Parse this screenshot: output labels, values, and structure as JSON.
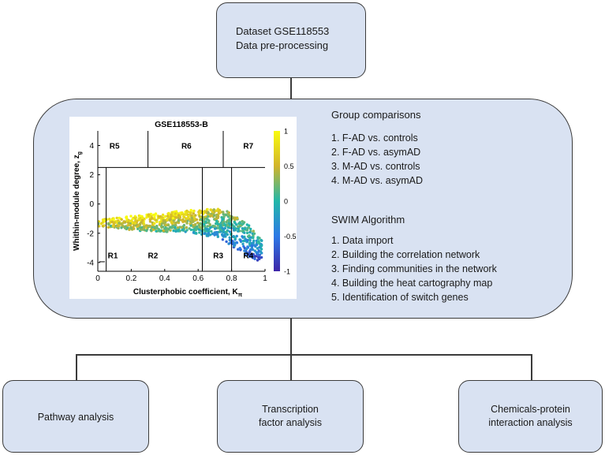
{
  "top_box": {
    "line1": "Dataset GSE118553",
    "line2": "Data pre-processing"
  },
  "group_comparisons": {
    "title": "Group comparisons",
    "items": [
      "1. F-AD vs. controls",
      "2. F-AD vs. asymAD",
      "3. M-AD vs. controls",
      "4. M-AD vs. asymAD"
    ]
  },
  "swim": {
    "title": "SWIM Algorithm",
    "items": [
      "1. Data import",
      "2. Building the correlation network",
      "3. Finding communities in the network",
      "4. Building the heat cartography map",
      "5. Identification of switch genes"
    ]
  },
  "bottom": {
    "pathway": "Pathway analysis",
    "tf_line1": "Transcription",
    "tf_line2": "factor analysis",
    "chem_line1": "Chemicals-protein",
    "chem_line2": "interaction analysis"
  },
  "plot": {
    "title": "GSE118553-B",
    "xlabel": "Clusterphobic coefficient, K",
    "xlabel_sub": "π",
    "ylabel": "Whithin-module degree, z",
    "ylabel_sub": "g",
    "xticks": [
      "0",
      "0.2",
      "0.4",
      "0.6",
      "0.8",
      "1"
    ],
    "yticks": [
      "4",
      "2",
      "0",
      "-2",
      "-4"
    ],
    "colorbar_ticks": [
      "1",
      "0.5",
      "0",
      "-0.5",
      "-1"
    ],
    "regions": [
      "R1",
      "R2",
      "R3",
      "R4",
      "R5",
      "R6",
      "R7"
    ]
  },
  "chart_data": {
    "type": "scatter",
    "title": "GSE118553-B",
    "xlabel": "Clusterphobic coefficient, Kπ",
    "ylabel": "Whithin-module degree, zg",
    "xlim": [
      0,
      1
    ],
    "ylim": [
      -4.6,
      5.0
    ],
    "color_range": [
      -1,
      1
    ],
    "region_boundaries": {
      "z_threshold": 2.5,
      "low_z_K": [
        0.05,
        0.625,
        0.8
      ],
      "high_z_K": [
        0.3,
        0.75
      ]
    },
    "cloud": {
      "x_range": [
        0.0,
        0.98
      ],
      "y_upper_edge": [
        [
          0.05,
          -1.0
        ],
        [
          0.3,
          -0.7
        ],
        [
          0.55,
          -0.4
        ],
        [
          0.75,
          -0.3
        ],
        [
          0.9,
          -1.4
        ],
        [
          0.98,
          -2.5
        ]
      ],
      "y_lower_edge": [
        [
          0.05,
          -1.6
        ],
        [
          0.3,
          -1.9
        ],
        [
          0.55,
          -1.9
        ],
        [
          0.75,
          -2.5
        ],
        [
          0.9,
          -3.6
        ],
        [
          0.98,
          -4.0
        ]
      ],
      "color_trend": "high values (yellow) at upper edge and left, low values (blue) toward lower right"
    }
  }
}
